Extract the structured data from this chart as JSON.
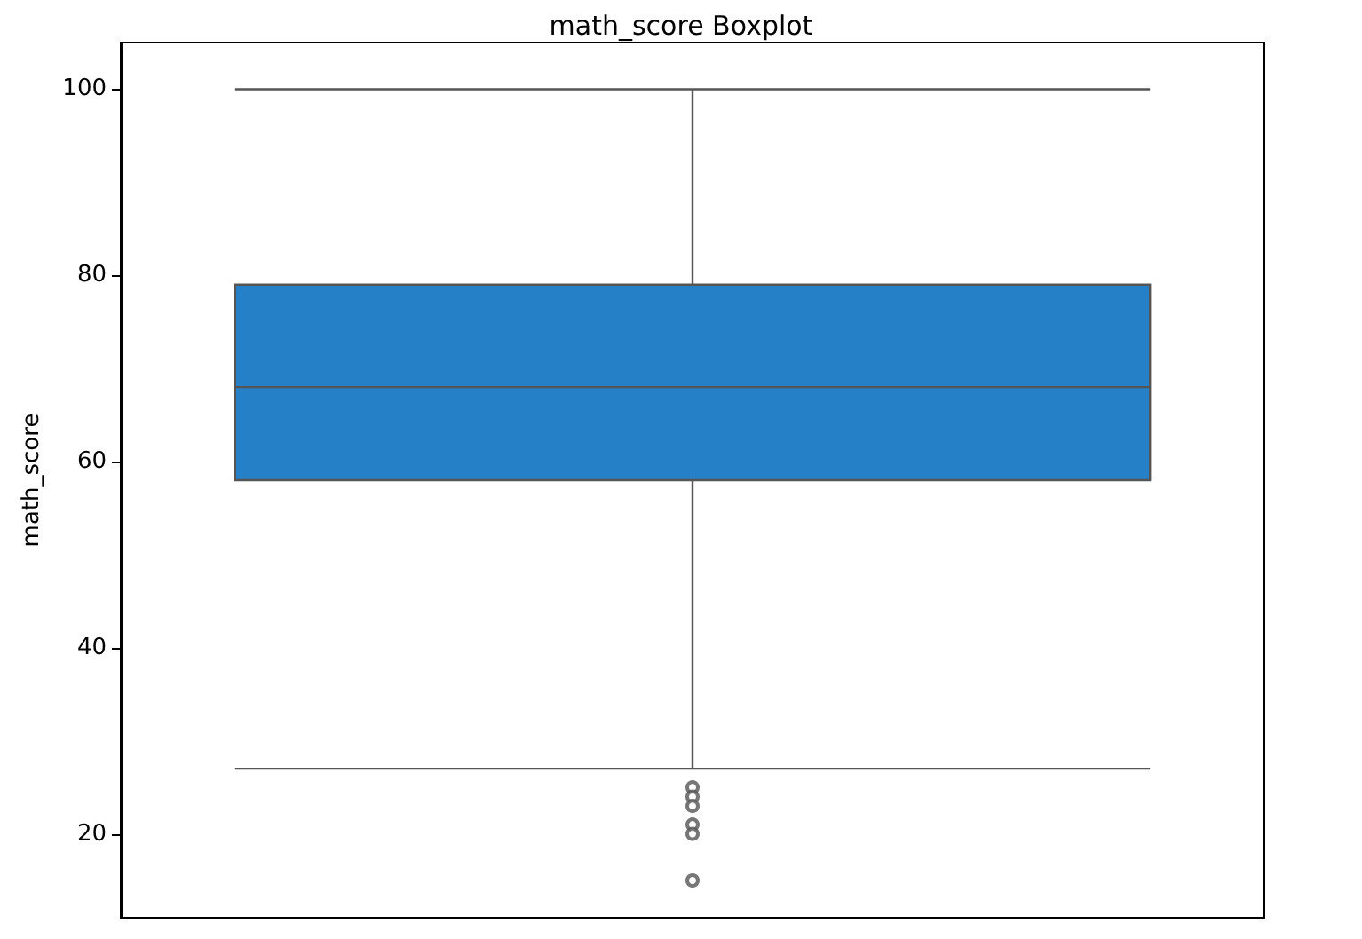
{
  "chart_data": {
    "type": "box",
    "title": "math_score Boxplot",
    "ylabel": "math_score",
    "categories": [
      null
    ],
    "boxes": [
      {
        "low": 27,
        "q1": 58,
        "median": 68,
        "q3": 79,
        "high": 100,
        "outliers": [
          25,
          24,
          23,
          21,
          20,
          15
        ]
      }
    ],
    "color": "#2580c8",
    "ylim": [
      11,
      105
    ],
    "yticks": [
      20,
      40,
      60,
      80,
      100
    ]
  }
}
